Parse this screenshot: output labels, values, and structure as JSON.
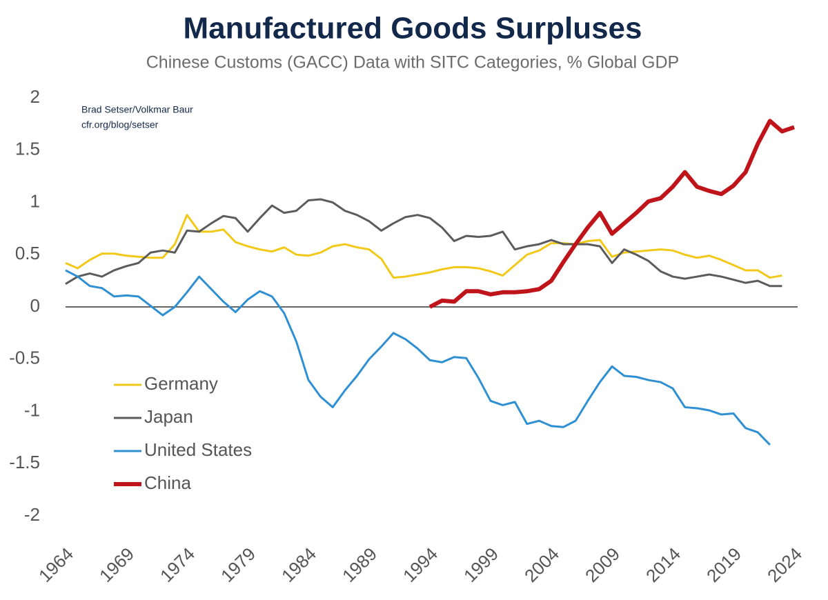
{
  "chart_data": {
    "type": "line",
    "title": "Manufactured Goods Surpluses",
    "subtitle": "Chinese Customs (GACC) Data with SITC Categories, % Global GDP",
    "annotations": [
      "Brad Setser/Volkmar Baur",
      "cfr.org/blog/setser"
    ],
    "x": [
      1964,
      1965,
      1966,
      1967,
      1968,
      1969,
      1970,
      1971,
      1972,
      1973,
      1974,
      1975,
      1976,
      1977,
      1978,
      1979,
      1980,
      1981,
      1982,
      1983,
      1984,
      1985,
      1986,
      1987,
      1988,
      1989,
      1990,
      1991,
      1992,
      1993,
      1994,
      1995,
      1996,
      1997,
      1998,
      1999,
      2000,
      2001,
      2002,
      2003,
      2004,
      2005,
      2006,
      2007,
      2008,
      2009,
      2010,
      2011,
      2012,
      2013,
      2014,
      2015,
      2016,
      2017,
      2018,
      2019,
      2020,
      2021,
      2022,
      2023,
      2024
    ],
    "series": [
      {
        "name": "Germany",
        "color": "#f2c919",
        "line_width": 3,
        "values": [
          0.42,
          0.37,
          0.45,
          0.51,
          0.51,
          0.49,
          0.48,
          0.47,
          0.47,
          0.6,
          0.88,
          0.72,
          0.72,
          0.74,
          0.62,
          0.58,
          0.55,
          0.53,
          0.57,
          0.5,
          0.49,
          0.52,
          0.58,
          0.6,
          0.57,
          0.55,
          0.46,
          0.28,
          0.29,
          0.31,
          0.33,
          0.36,
          0.38,
          0.38,
          0.37,
          0.34,
          0.3,
          0.4,
          0.5,
          0.54,
          0.61,
          0.61,
          0.6,
          0.63,
          0.64,
          0.48,
          0.52,
          0.53,
          0.54,
          0.55,
          0.54,
          0.5,
          0.47,
          0.49,
          0.45,
          0.4,
          0.35,
          0.35,
          0.28,
          0.3,
          null
        ]
      },
      {
        "name": "Japan",
        "color": "#5b5b5b",
        "line_width": 3,
        "values": [
          0.22,
          0.29,
          0.32,
          0.29,
          0.35,
          0.39,
          0.42,
          0.52,
          0.54,
          0.52,
          0.73,
          0.72,
          0.8,
          0.87,
          0.85,
          0.72,
          0.85,
          0.97,
          0.9,
          0.92,
          1.02,
          1.03,
          1.0,
          0.92,
          0.88,
          0.82,
          0.73,
          0.8,
          0.86,
          0.88,
          0.85,
          0.76,
          0.63,
          0.68,
          0.67,
          0.68,
          0.72,
          0.55,
          0.58,
          0.6,
          0.64,
          0.6,
          0.6,
          0.6,
          0.58,
          0.42,
          0.55,
          0.5,
          0.44,
          0.34,
          0.29,
          0.27,
          0.29,
          0.31,
          0.29,
          0.26,
          0.23,
          0.25,
          0.2,
          0.2,
          null
        ]
      },
      {
        "name": "United States",
        "color": "#2f8fd3",
        "line_width": 3,
        "values": [
          0.35,
          0.29,
          0.2,
          0.18,
          0.1,
          0.11,
          0.1,
          0.01,
          -0.08,
          0.0,
          0.14,
          0.29,
          0.17,
          0.05,
          -0.05,
          0.07,
          0.15,
          0.1,
          -0.06,
          -0.33,
          -0.7,
          -0.86,
          -0.96,
          -0.8,
          -0.66,
          -0.5,
          -0.38,
          -0.25,
          -0.31,
          -0.4,
          -0.51,
          -0.53,
          -0.48,
          -0.49,
          -0.68,
          -0.9,
          -0.94,
          -0.91,
          -1.12,
          -1.09,
          -1.14,
          -1.15,
          -1.09,
          -0.9,
          -0.72,
          -0.57,
          -0.66,
          -0.67,
          -0.7,
          -0.72,
          -0.78,
          -0.96,
          -0.97,
          -0.99,
          -1.03,
          -1.02,
          -1.16,
          -1.2,
          -1.32,
          null,
          null
        ]
      },
      {
        "name": "China",
        "color": "#c0141b",
        "line_width": 6,
        "values": [
          null,
          null,
          null,
          null,
          null,
          null,
          null,
          null,
          null,
          null,
          null,
          null,
          null,
          null,
          null,
          null,
          null,
          null,
          null,
          null,
          null,
          null,
          null,
          null,
          null,
          null,
          null,
          null,
          null,
          null,
          0.0,
          0.06,
          0.05,
          0.15,
          0.15,
          0.12,
          0.14,
          0.14,
          0.15,
          0.17,
          0.25,
          0.43,
          0.6,
          0.76,
          0.9,
          0.7,
          0.8,
          0.9,
          1.01,
          1.04,
          1.15,
          1.29,
          1.15,
          1.11,
          1.08,
          1.16,
          1.29,
          1.56,
          1.78,
          1.68,
          1.72
        ]
      }
    ],
    "xlim": [
      1964,
      2024
    ],
    "xticks": [
      1964,
      1969,
      1974,
      1979,
      1984,
      1989,
      1994,
      1999,
      2004,
      2009,
      2014,
      2019,
      2024
    ],
    "ylim": [
      -2,
      2
    ],
    "yticks": [
      2,
      1.5,
      1,
      0.5,
      0,
      -0.5,
      -1,
      -1.5,
      -2
    ],
    "grid": false,
    "zero_line": true,
    "legend": "lower left"
  }
}
